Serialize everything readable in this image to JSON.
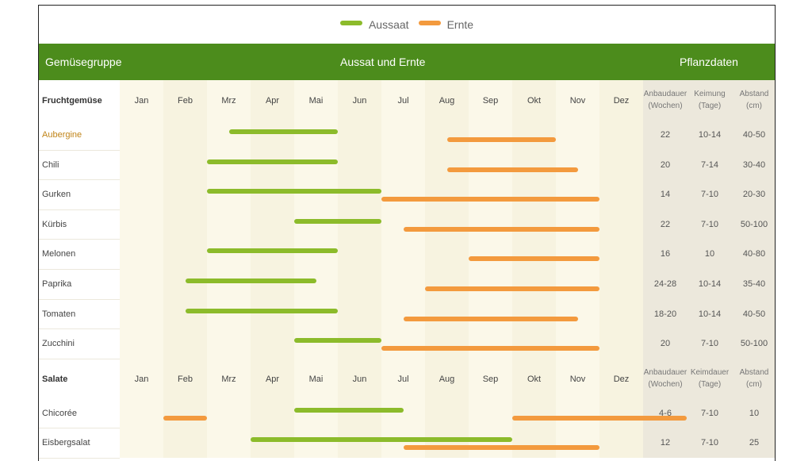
{
  "legend": {
    "sow": "Aussaat",
    "harvest": "Ernte"
  },
  "colors": {
    "header_bg": "#4c8c1c",
    "sow": "#8cbb2b",
    "harvest": "#f39a3e",
    "highlight_label": "#c08418"
  },
  "header": {
    "group": "Gemüsegruppe",
    "middle": "Aussat und Ernte",
    "right": "Pflanzdaten"
  },
  "months": [
    "Jan",
    "Feb",
    "Mrz",
    "Apr",
    "Mai",
    "Jun",
    "Jul",
    "Aug",
    "Sep",
    "Okt",
    "Nov",
    "Dez"
  ],
  "chart_data": {
    "type": "gantt",
    "x_unit": "months",
    "groups": [
      {
        "name": "Fruchtgemüse",
        "columns": [
          "Anbaudauer (Wochen)",
          "Keimung (Tage)",
          "Abstand (cm)"
        ],
        "rows": [
          {
            "name": "Aubergine",
            "highlight": true,
            "sow": [
              2.5,
              5.0
            ],
            "harvest": [
              7.5,
              10.0
            ],
            "data": [
              "22",
              "10-14",
              "40-50"
            ]
          },
          {
            "name": "Chili",
            "sow": [
              2.0,
              5.0
            ],
            "harvest": [
              7.5,
              10.5
            ],
            "data": [
              "20",
              "7-14",
              "30-40"
            ]
          },
          {
            "name": "Gurken",
            "sow": [
              2.0,
              6.0
            ],
            "harvest": [
              6.0,
              11.0
            ],
            "data": [
              "14",
              "7-10",
              "20-30"
            ]
          },
          {
            "name": "Kürbis",
            "sow": [
              4.0,
              6.0
            ],
            "harvest": [
              6.5,
              11.0
            ],
            "data": [
              "22",
              "7-10",
              "50-100"
            ]
          },
          {
            "name": "Melonen",
            "sow": [
              2.0,
              5.0
            ],
            "harvest": [
              8.0,
              11.0
            ],
            "data": [
              "16",
              "10",
              "40-80"
            ]
          },
          {
            "name": "Paprika",
            "sow": [
              1.5,
              4.5
            ],
            "harvest": [
              7.0,
              11.0
            ],
            "data": [
              "24-28",
              "10-14",
              "35-40"
            ]
          },
          {
            "name": "Tomaten",
            "sow": [
              1.5,
              5.0
            ],
            "harvest": [
              6.5,
              10.5
            ],
            "data": [
              "18-20",
              "10-14",
              "40-50"
            ]
          },
          {
            "name": "Zucchini",
            "sow": [
              4.0,
              6.0
            ],
            "harvest": [
              6.0,
              11.0
            ],
            "data": [
              "20",
              "7-10",
              "50-100"
            ]
          }
        ]
      },
      {
        "name": "Salate",
        "columns": [
          "Anbaudauer (Wochen)",
          "Keimdauer (Tage)",
          "Abstand (cm)"
        ],
        "rows": [
          {
            "name": "Chicorée",
            "sow": [
              4.0,
              6.5
            ],
            "harvest": [
              [
                1.0,
                2.0
              ],
              [
                9.0,
                13.0
              ]
            ],
            "data": [
              "4-6",
              "7-10",
              "10"
            ]
          },
          {
            "name": "Eisbergsalat",
            "sow": [
              3.0,
              9.0
            ],
            "harvest": [
              6.5,
              11.0
            ],
            "data": [
              "12",
              "7-10",
              "25"
            ]
          }
        ]
      }
    ]
  }
}
